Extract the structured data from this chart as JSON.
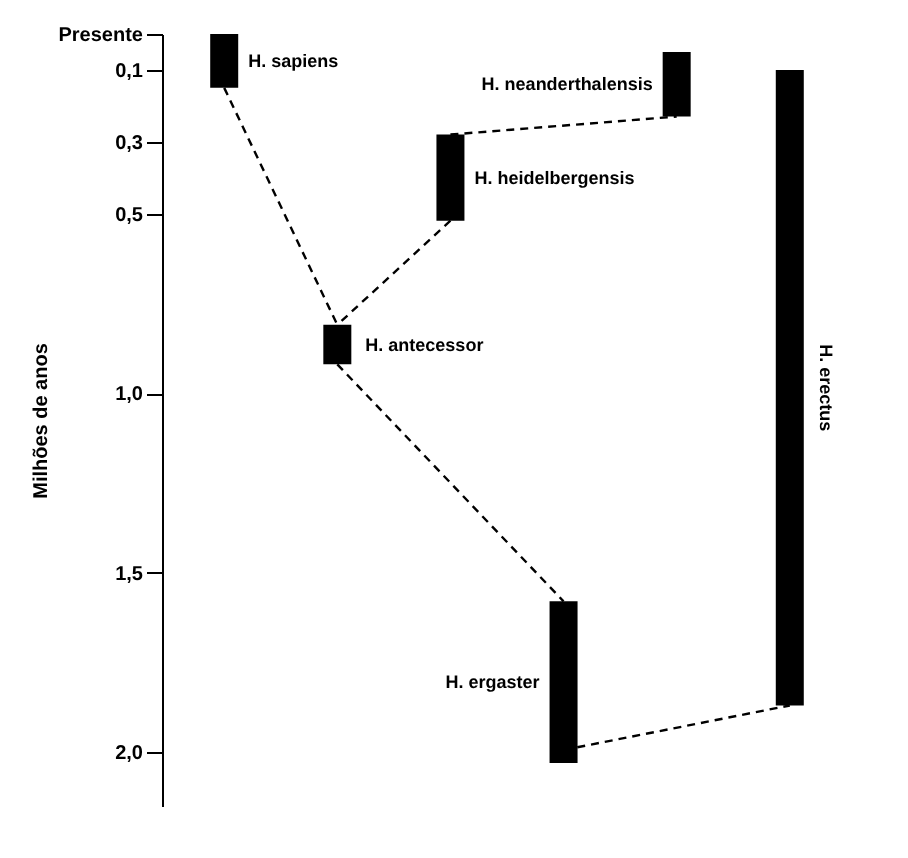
{
  "chart_data": {
    "type": "bar",
    "ylabel": "Milhões de anos",
    "categories": [
      null,
      null,
      null,
      null,
      null,
      null
    ],
    "base": [
      0,
      0.81,
      0.28,
      1.58,
      0.05,
      0.1
    ],
    "values": [
      0.15,
      0.11,
      0.24,
      0.45,
      0.18,
      1.77
    ],
    "color": "#000000",
    "annotations": [
      "H. sapiens",
      "H. antecessor",
      "H. heidelbergensis",
      "H. ergaster",
      "H. neanderthalensis",
      "H. erectus"
    ],
    "ylim": [
      2.15,
      0
    ],
    "yticks": [
      {
        "value": 0,
        "label": "Presente"
      },
      {
        "value": 0.1,
        "label": "0,1"
      },
      {
        "value": 0.3,
        "label": "0,3"
      },
      {
        "value": 0.5,
        "label": "0,5"
      },
      {
        "value": 1,
        "label": "1,0"
      },
      {
        "value": 1.5,
        "label": "1,5"
      },
      {
        "value": 2,
        "label": "2,0"
      }
    ],
    "tick_labels": "y",
    "grid": false
  }
}
